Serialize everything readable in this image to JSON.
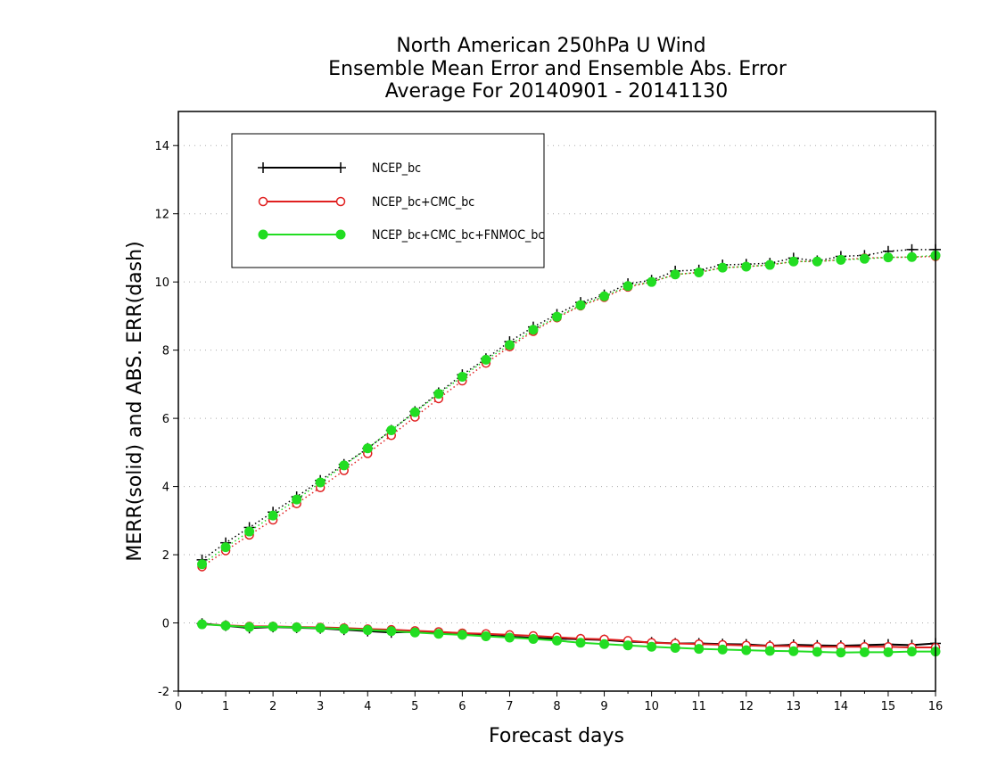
{
  "chart_data": {
    "type": "line",
    "title": [
      "North American 250hPa U Wind",
      "Ensemble Mean Error and Ensemble Abs. Error",
      "Average For 20140901 - 20141130"
    ],
    "xlabel": "Forecast days",
    "ylabel": "MERR(solid) and ABS. ERR(dash)",
    "xlim": [
      0,
      16
    ],
    "ylim": [
      -2,
      15
    ],
    "xticks": [
      0,
      1,
      2,
      3,
      4,
      5,
      6,
      7,
      8,
      9,
      10,
      11,
      12,
      13,
      14,
      15,
      16
    ],
    "yticks": [
      -2,
      0,
      2,
      4,
      6,
      8,
      10,
      12,
      14
    ],
    "grid": "horizontal dotted",
    "legend_position": "top-left",
    "x": [
      0.5,
      1,
      1.5,
      2,
      2.5,
      3,
      3.5,
      4,
      4.5,
      5,
      5.5,
      6,
      6.5,
      7,
      7.5,
      8,
      8.5,
      9,
      9.5,
      10,
      10.5,
      11,
      11.5,
      12,
      12.5,
      13,
      13.5,
      14,
      14.5,
      15,
      15.5,
      16
    ],
    "series": [
      {
        "name": "NCEP_bc",
        "color": "#000000",
        "marker": "plus",
        "abs_err": [
          1.85,
          2.35,
          2.8,
          3.25,
          3.7,
          4.18,
          4.65,
          5.12,
          5.65,
          6.2,
          6.75,
          7.28,
          7.75,
          8.25,
          8.68,
          9.05,
          9.4,
          9.62,
          9.95,
          10.05,
          10.32,
          10.35,
          10.5,
          10.52,
          10.55,
          10.7,
          10.62,
          10.75,
          10.78,
          10.9,
          10.95,
          10.95
        ],
        "mean_err": [
          -0.02,
          -0.08,
          -0.15,
          -0.12,
          -0.14,
          -0.16,
          -0.2,
          -0.24,
          -0.28,
          -0.26,
          -0.3,
          -0.33,
          -0.37,
          -0.4,
          -0.44,
          -0.46,
          -0.48,
          -0.5,
          -0.55,
          -0.57,
          -0.6,
          -0.6,
          -0.62,
          -0.63,
          -0.67,
          -0.64,
          -0.66,
          -0.67,
          -0.65,
          -0.63,
          -0.65,
          -0.6
        ]
      },
      {
        "name": "NCEP_bc+CMC_bc",
        "color": "#e02020",
        "marker": "open-circle",
        "abs_err": [
          1.65,
          2.12,
          2.58,
          3.02,
          3.5,
          3.97,
          4.47,
          4.97,
          5.5,
          6.04,
          6.58,
          7.1,
          7.62,
          8.1,
          8.55,
          8.95,
          9.3,
          9.55,
          9.85,
          10.0,
          10.22,
          10.28,
          10.42,
          10.45,
          10.5,
          10.6,
          10.6,
          10.65,
          10.7,
          10.72,
          10.73,
          10.75
        ],
        "mean_err": [
          -0.04,
          -0.07,
          -0.1,
          -0.1,
          -0.12,
          -0.13,
          -0.15,
          -0.18,
          -0.2,
          -0.23,
          -0.26,
          -0.3,
          -0.32,
          -0.35,
          -0.38,
          -0.42,
          -0.46,
          -0.48,
          -0.52,
          -0.58,
          -0.6,
          -0.62,
          -0.64,
          -0.66,
          -0.68,
          -0.68,
          -0.7,
          -0.7,
          -0.7,
          -0.7,
          -0.72,
          -0.72
        ]
      },
      {
        "name": "NCEP_bc+CMC_bc+FNMOC_bc",
        "color": "#22dd22",
        "marker": "filled-circle",
        "abs_err": [
          1.72,
          2.22,
          2.68,
          3.15,
          3.62,
          4.12,
          4.62,
          5.12,
          5.65,
          6.18,
          6.72,
          7.22,
          7.72,
          8.15,
          8.6,
          8.98,
          9.32,
          9.58,
          9.88,
          10.0,
          10.22,
          10.28,
          10.42,
          10.45,
          10.5,
          10.6,
          10.6,
          10.65,
          10.68,
          10.72,
          10.73,
          10.78
        ],
        "mean_err": [
          -0.04,
          -0.08,
          -0.12,
          -0.11,
          -0.13,
          -0.15,
          -0.18,
          -0.21,
          -0.24,
          -0.28,
          -0.32,
          -0.35,
          -0.39,
          -0.43,
          -0.47,
          -0.52,
          -0.58,
          -0.62,
          -0.66,
          -0.7,
          -0.73,
          -0.76,
          -0.78,
          -0.8,
          -0.82,
          -0.83,
          -0.85,
          -0.87,
          -0.86,
          -0.86,
          -0.84,
          -0.84
        ]
      }
    ]
  }
}
